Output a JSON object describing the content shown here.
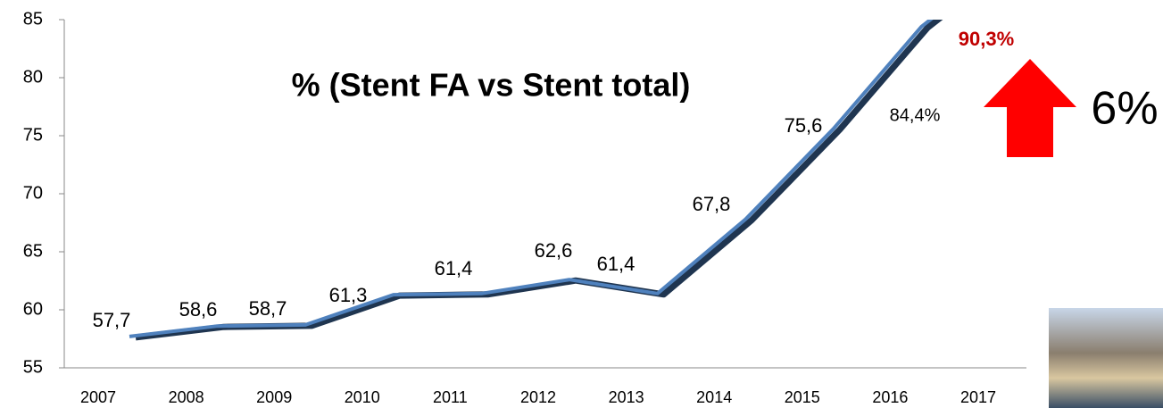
{
  "chart_data": {
    "type": "line",
    "title": "% (Stent FA vs Stent total)",
    "annotation": "6%",
    "categories": [
      "2007",
      "2008",
      "2009",
      "2010",
      "2011",
      "2012",
      "2013",
      "2014",
      "2015",
      "2016",
      "2017"
    ],
    "series": [
      {
        "color": "#4f81bd",
        "values": [
          57.7,
          58.6,
          58.7,
          61.3,
          61.4,
          62.6,
          61.4,
          67.8,
          75.6,
          84.4,
          90.3
        ],
        "value_labels": [
          "57,7",
          "58,6",
          "58,7",
          "61,3",
          "61,4",
          "62,6",
          "61,4",
          "67,8",
          "75,6",
          "84,4%",
          "90,3%"
        ]
      }
    ],
    "ylim": [
      55,
      85
    ],
    "yticks": [
      55,
      60,
      65,
      70,
      75,
      80,
      85
    ]
  }
}
